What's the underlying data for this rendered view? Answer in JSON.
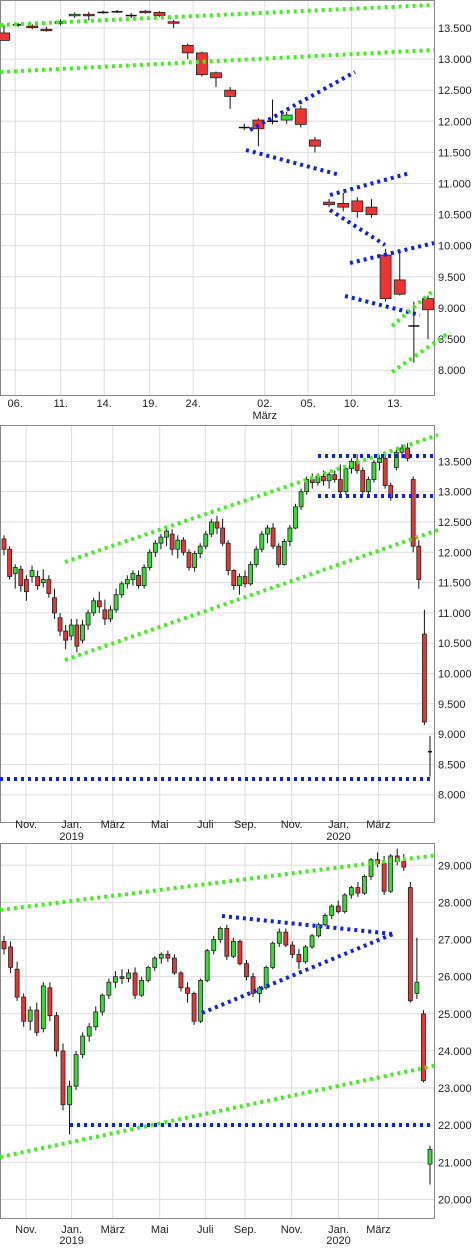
{
  "chart_data": [
    {
      "type": "candlestick",
      "x_ticks": [
        {
          "label": "06.",
          "sub": "",
          "pos": 0.035
        },
        {
          "label": "11.",
          "sub": "",
          "pos": 0.14
        },
        {
          "label": "14.",
          "sub": "",
          "pos": 0.24
        },
        {
          "label": "19.",
          "sub": "",
          "pos": 0.345
        },
        {
          "label": "24.",
          "sub": "",
          "pos": 0.445
        },
        {
          "label": "02.",
          "sub": "März",
          "pos": 0.61
        },
        {
          "label": "05.",
          "sub": "",
          "pos": 0.71
        },
        {
          "label": "10.",
          "sub": "",
          "pos": 0.81
        },
        {
          "label": "13.",
          "sub": "",
          "pos": 0.91
        }
      ],
      "y_ticks": [
        13.5,
        13.0,
        12.5,
        12.0,
        11.5,
        11.0,
        10.5,
        10.0,
        9.5,
        9.0,
        8.5,
        8.0
      ],
      "y_tick_labels": [
        "13.500",
        "13.000",
        "12.500",
        "12.000",
        "11.500",
        "11.000",
        "10.500",
        "10.000",
        "9.500",
        "9.000",
        "8.500",
        "8.000"
      ],
      "ylim": [
        7.6,
        13.95
      ],
      "colors": {
        "up": "#33dd33",
        "down": "#ee3333",
        "line_green": "#44ee22",
        "line_blue": "#1122dd"
      },
      "candles": [
        [
          13.42,
          13.55,
          13.3,
          13.3
        ],
        [
          13.55,
          13.58,
          13.52,
          13.55
        ],
        [
          13.53,
          13.56,
          13.48,
          13.52
        ],
        [
          13.48,
          13.52,
          13.44,
          13.47
        ],
        [
          13.58,
          13.64,
          13.54,
          13.6
        ],
        [
          13.7,
          13.75,
          13.66,
          13.72
        ],
        [
          13.72,
          13.76,
          13.62,
          13.7
        ],
        [
          13.75,
          13.78,
          13.73,
          13.75
        ],
        [
          13.76,
          13.79,
          13.74,
          13.76
        ],
        [
          13.7,
          13.74,
          13.66,
          13.7
        ],
        [
          13.77,
          13.79,
          13.73,
          13.76
        ],
        [
          13.75,
          13.77,
          13.68,
          13.7
        ],
        [
          13.6,
          13.63,
          13.5,
          13.58
        ],
        [
          13.22,
          13.25,
          13.0,
          13.1
        ],
        [
          13.1,
          13.12,
          12.72,
          12.75
        ],
        [
          12.78,
          12.8,
          12.55,
          12.7
        ],
        [
          12.5,
          12.55,
          12.2,
          12.4
        ],
        [
          11.9,
          11.96,
          11.86,
          11.9
        ],
        [
          12.02,
          12.05,
          11.6,
          11.88
        ],
        [
          12.0,
          12.35,
          11.95,
          12.0
        ],
        [
          12.02,
          12.15,
          11.96,
          12.1
        ],
        [
          12.2,
          12.25,
          11.9,
          11.95
        ],
        [
          11.7,
          11.75,
          11.5,
          11.6
        ],
        [
          10.7,
          10.75,
          10.62,
          10.66
        ],
        [
          10.68,
          10.85,
          10.55,
          10.62
        ],
        [
          10.72,
          10.78,
          10.45,
          10.55
        ],
        [
          10.62,
          10.75,
          10.45,
          10.5
        ],
        [
          9.85,
          9.95,
          9.1,
          9.15
        ],
        [
          9.45,
          9.9,
          9.2,
          9.22
        ],
        [
          8.71,
          9.1,
          8.12,
          8.71
        ],
        [
          9.15,
          9.2,
          8.5,
          8.97
        ]
      ]
    },
    {
      "type": "candlestick",
      "x_ticks": [
        {
          "label": "Nov.",
          "sub": "",
          "pos": 0.06
        },
        {
          "label": "Jan.",
          "sub": "2019",
          "pos": 0.165
        },
        {
          "label": "März",
          "sub": "",
          "pos": 0.26
        },
        {
          "label": "Mai",
          "sub": "",
          "pos": 0.368
        },
        {
          "label": "Juli",
          "sub": "",
          "pos": 0.473
        },
        {
          "label": "Sep.",
          "sub": "",
          "pos": 0.565
        },
        {
          "label": "Nov.",
          "sub": "",
          "pos": 0.672
        },
        {
          "label": "Jan.",
          "sub": "2020",
          "pos": 0.78
        },
        {
          "label": "März",
          "sub": "",
          "pos": 0.872
        }
      ],
      "y_ticks": [
        13.5,
        13.0,
        12.5,
        12.0,
        11.5,
        11.0,
        10.5,
        10.0,
        9.5,
        9.0,
        8.5,
        8.0
      ],
      "y_tick_labels": [
        "13.500",
        "13.000",
        "12.500",
        "12.000",
        "11.500",
        "11.000",
        "10.500",
        "10.000",
        "9.500",
        "9.000",
        "8.500",
        "8.000"
      ],
      "ylim": [
        7.55,
        14.1
      ],
      "colors": {
        "up": "#33dd33",
        "down": "#ee3333",
        "line_green": "#44ee22",
        "line_blue": "#1122dd"
      }
    },
    {
      "type": "candlestick",
      "x_ticks": [
        {
          "label": "Nov.",
          "sub": "",
          "pos": 0.06
        },
        {
          "label": "Jan.",
          "sub": "2019",
          "pos": 0.165
        },
        {
          "label": "März",
          "sub": "",
          "pos": 0.26
        },
        {
          "label": "Mai",
          "sub": "",
          "pos": 0.368
        },
        {
          "label": "Juli",
          "sub": "",
          "pos": 0.473
        },
        {
          "label": "Sep.",
          "sub": "",
          "pos": 0.565
        },
        {
          "label": "Nov.",
          "sub": "",
          "pos": 0.672
        },
        {
          "label": "Jan.",
          "sub": "2020",
          "pos": 0.78
        },
        {
          "label": "März",
          "sub": "",
          "pos": 0.872
        }
      ],
      "y_ticks": [
        29,
        28,
        27,
        26,
        25,
        24,
        23,
        22,
        21,
        20
      ],
      "y_tick_labels": [
        "29.000",
        "28.000",
        "27.000",
        "26.000",
        "25.000",
        "24.000",
        "23.000",
        "22.000",
        "21.000",
        "20.000"
      ],
      "ylim": [
        19.5,
        29.6
      ],
      "colors": {
        "up": "#33dd33",
        "down": "#ee3333",
        "line_green": "#44ee22",
        "line_blue": "#1122dd"
      }
    }
  ]
}
